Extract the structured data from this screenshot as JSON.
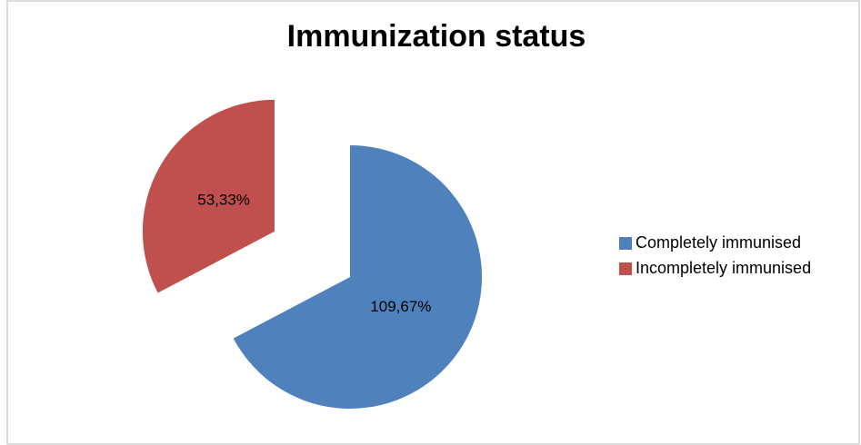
{
  "chart_data": {
    "type": "pie",
    "title": "Immunization status",
    "categories": [
      "Completely immunised",
      "Incompletely immunised"
    ],
    "values": [
      109.67,
      53.33
    ],
    "value_labels": [
      "109,67%",
      "53,33%"
    ],
    "colors": [
      "#4f81bd",
      "#c0504d"
    ],
    "legend": "right"
  }
}
